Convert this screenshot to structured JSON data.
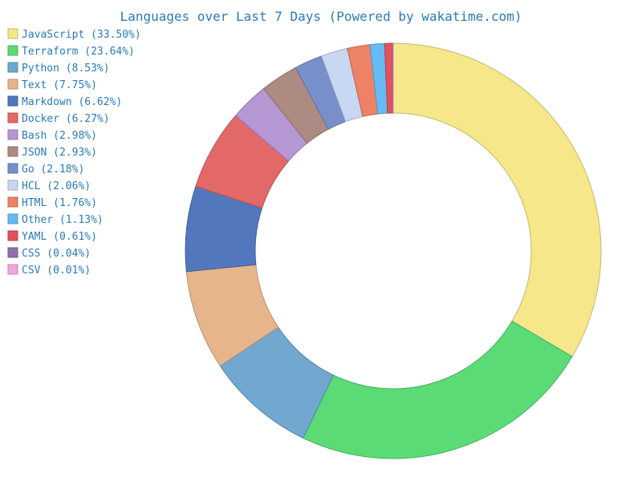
{
  "chart_data": {
    "type": "pie",
    "style": "donut",
    "title": "Languages over Last 7 Days (Powered by wakatime.com)",
    "legend_position": "top-left",
    "slices": [
      {
        "label": "JavaScript (33.50%)",
        "value": 33.5,
        "color": "#f5e78a"
      },
      {
        "label": "Terraform (23.64%)",
        "value": 23.64,
        "color": "#5bdb76"
      },
      {
        "label": "Python (8.53%)",
        "value": 8.53,
        "color": "#72a7cf"
      },
      {
        "label": "Text (7.75%)",
        "value": 7.75,
        "color": "#e6b58c"
      },
      {
        "label": "Markdown (6.62%)",
        "value": 6.62,
        "color": "#5277bd"
      },
      {
        "label": "Docker (6.27%)",
        "value": 6.27,
        "color": "#e36868"
      },
      {
        "label": "Bash (2.98%)",
        "value": 2.98,
        "color": "#b597d4"
      },
      {
        "label": "JSON (2.93%)",
        "value": 2.93,
        "color": "#ae8b82"
      },
      {
        "label": "Go (2.18%)",
        "value": 2.18,
        "color": "#778fca"
      },
      {
        "label": "HCL (2.06%)",
        "value": 2.06,
        "color": "#c8d7f2"
      },
      {
        "label": "HTML (1.76%)",
        "value": 1.76,
        "color": "#ee8266"
      },
      {
        "label": "Other (1.13%)",
        "value": 1.13,
        "color": "#66bbf2"
      },
      {
        "label": "YAML (0.61%)",
        "value": 0.61,
        "color": "#e2525e"
      },
      {
        "label": "CSS (0.04%)",
        "value": 0.04,
        "color": "#8c74aa"
      },
      {
        "label": "CSV (0.01%)",
        "value": 0.01,
        "color": "#f2a5dc"
      }
    ]
  }
}
